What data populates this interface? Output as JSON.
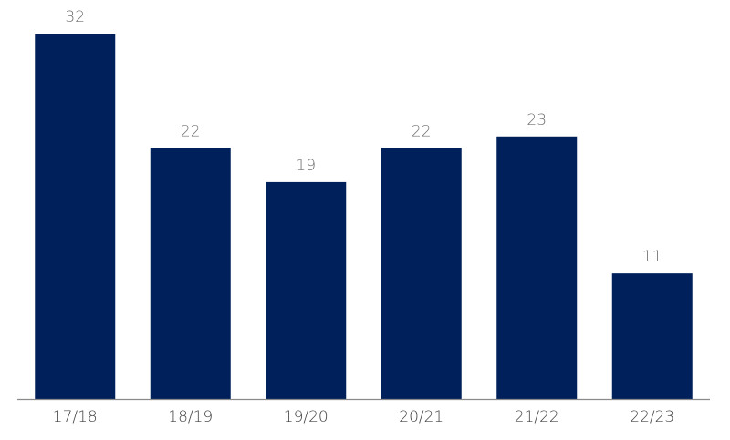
{
  "chart_data": {
    "type": "bar",
    "categories": [
      "17/18",
      "18/19",
      "19/20",
      "20/21",
      "21/22",
      "22/23"
    ],
    "values": [
      32,
      22,
      19,
      22,
      23,
      11
    ],
    "color": "#00205b"
  }
}
